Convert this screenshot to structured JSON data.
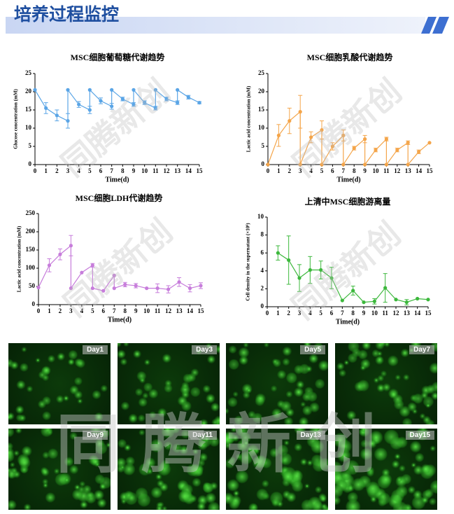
{
  "header": {
    "title": "培养过程监控"
  },
  "watermark": "同腾新创",
  "chart_data": [
    {
      "type": "line",
      "title": "MSC细胞葡萄糖代谢趋势",
      "x_label": "Time(d)",
      "y_label": "Glucose concentration (mM)",
      "xlim": [
        0,
        15
      ],
      "xticks": [
        0,
        1,
        2,
        3,
        4,
        5,
        6,
        7,
        8,
        9,
        10,
        11,
        12,
        13,
        14,
        15
      ],
      "ylim": [
        0,
        25
      ],
      "yticks": [
        0,
        5,
        10,
        15,
        20,
        25
      ],
      "series": [
        {
          "color": "#5aa5e6",
          "x": [
            0,
            1,
            2,
            3,
            3,
            4,
            5,
            5,
            6,
            7,
            7,
            8,
            9,
            9,
            10,
            11,
            11,
            12,
            13,
            13,
            14,
            15
          ],
          "values": [
            20.5,
            15.5,
            13.5,
            12,
            20.5,
            16.5,
            15,
            20.5,
            17.5,
            16,
            20.5,
            18,
            16.5,
            20.5,
            17,
            15.5,
            20.5,
            18,
            17,
            20.5,
            18.5,
            17
          ],
          "errors": [
            null,
            1.5,
            1.5,
            2,
            null,
            0.8,
            1,
            null,
            0.8,
            0.8,
            null,
            0.5,
            0.5,
            null,
            0.5,
            0.5,
            null,
            0.5,
            0.5,
            null,
            0.5,
            0.3
          ]
        }
      ]
    },
    {
      "type": "line",
      "title": "MSC细胞乳酸代谢趋势",
      "x_label": "Time(d)",
      "y_label": "Lactic acid concentration (mM)",
      "xlim": [
        0,
        15
      ],
      "xticks": [
        0,
        1,
        2,
        3,
        4,
        5,
        6,
        7,
        8,
        9,
        10,
        11,
        12,
        13,
        14,
        15
      ],
      "ylim": [
        0,
        25
      ],
      "yticks": [
        0,
        5,
        10,
        15,
        20,
        25
      ],
      "series": [
        {
          "color": "#f4a54a",
          "x": [
            0,
            1,
            2,
            3,
            3,
            4,
            5,
            5,
            6,
            7,
            7,
            8,
            9,
            9,
            10,
            11,
            11,
            12,
            13,
            13,
            14,
            15
          ],
          "values": [
            0,
            8,
            12,
            14.5,
            0,
            7.5,
            9.5,
            0,
            5,
            8,
            0,
            4.5,
            7,
            0,
            4,
            7,
            0,
            4,
            6,
            0,
            3.5,
            6
          ],
          "errors": [
            null,
            3,
            3.5,
            4.5,
            null,
            1.5,
            2.5,
            null,
            1,
            1.5,
            null,
            0.5,
            1,
            null,
            0.5,
            0.5,
            null,
            0.5,
            0.5,
            null,
            0.5,
            null
          ]
        }
      ]
    },
    {
      "type": "line",
      "title": "MSC细胞LDH代谢趋势",
      "x_label": "Time(d)",
      "y_label": "Lactic acid concentration (mM)",
      "xlim": [
        0,
        15
      ],
      "xticks": [
        0,
        1,
        2,
        3,
        4,
        5,
        6,
        7,
        8,
        9,
        10,
        11,
        12,
        13,
        14,
        15
      ],
      "ylim": [
        0,
        250
      ],
      "yticks": [
        0,
        50,
        100,
        150,
        200,
        250
      ],
      "series": [
        {
          "color": "#c77ddb",
          "x": [
            0,
            1,
            2,
            3,
            3,
            4,
            5,
            5,
            6,
            7,
            7,
            8,
            9,
            10,
            11,
            12,
            13,
            14,
            15
          ],
          "values": [
            47,
            108,
            138,
            162,
            45,
            88,
            108,
            45,
            38,
            80,
            45,
            55,
            52,
            45,
            45,
            42,
            62,
            45,
            52
          ],
          "errors": [
            null,
            18,
            15,
            28,
            null,
            null,
            5,
            null,
            null,
            null,
            null,
            6,
            6,
            null,
            12,
            10,
            12,
            10,
            8
          ]
        }
      ]
    },
    {
      "type": "line",
      "title": "上清中MSC细胞游离量",
      "x_label": "Time(d)",
      "y_label": "Cell density in the supernatant (×10⁶)",
      "xlim": [
        0,
        15
      ],
      "xticks": [
        0,
        1,
        2,
        3,
        4,
        5,
        6,
        7,
        8,
        9,
        10,
        11,
        12,
        13,
        14,
        15
      ],
      "ylim": [
        0,
        10
      ],
      "yticks": [
        0,
        2,
        4,
        6,
        8,
        10
      ],
      "series": [
        {
          "color": "#3cb83c",
          "x": [
            1,
            2,
            3,
            4,
            5,
            6,
            7,
            8,
            9,
            10,
            11,
            12,
            13,
            14,
            15
          ],
          "values": [
            6,
            5.2,
            3.2,
            4.1,
            4.1,
            3.2,
            0.7,
            1.8,
            0.5,
            0.6,
            2.1,
            0.8,
            0.5,
            0.9,
            0.8
          ],
          "errors": [
            0.8,
            2.7,
            1.5,
            1.5,
            1,
            1.2,
            null,
            0.5,
            null,
            0.3,
            1.6,
            null,
            0.3,
            null,
            null
          ]
        }
      ]
    }
  ],
  "images": [
    {
      "label": "Day1"
    },
    {
      "label": "Day3"
    },
    {
      "label": "Day5"
    },
    {
      "label": "Day7"
    },
    {
      "label": "Day9"
    },
    {
      "label": "Day11"
    },
    {
      "label": "Day13"
    },
    {
      "label": "Day15"
    }
  ]
}
